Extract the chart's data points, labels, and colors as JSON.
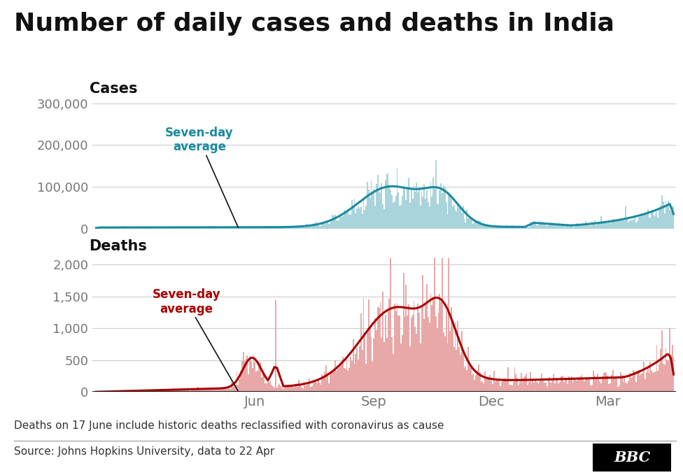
{
  "title": "Number of daily cases and deaths in India",
  "cases_label": "Cases",
  "deaths_label": "Deaths",
  "cases_avg_label": "Seven-day\naverage",
  "deaths_avg_label": "Seven-day\naverage",
  "cases_bar_color": "#aad4dc",
  "cases_line_color": "#1a8a9f",
  "deaths_bar_color": "#e8a8a8",
  "deaths_line_color": "#aa0000",
  "cases_ylim": [
    0,
    320000
  ],
  "deaths_ylim": [
    0,
    2100
  ],
  "cases_yticks": [
    0,
    100000,
    200000,
    300000
  ],
  "deaths_yticks": [
    0,
    500,
    1000,
    1500,
    2000
  ],
  "footnote": "Deaths on 17 June include historic deaths reclassified with coronavirus as cause",
  "source": "Source: Johns Hopkins University, data to 22 Apr",
  "xlabel_ticks": [
    "Jun",
    "Sep",
    "Dec",
    "Mar"
  ],
  "background_color": "#ffffff",
  "title_fontsize": 26,
  "label_fontsize": 15,
  "tick_fontsize": 13,
  "annotation_fontsize": 12,
  "footnote_fontsize": 11,
  "source_fontsize": 11,
  "tick_color": "#777777",
  "grid_color": "#cccccc",
  "bottom_line_color": "#000000"
}
